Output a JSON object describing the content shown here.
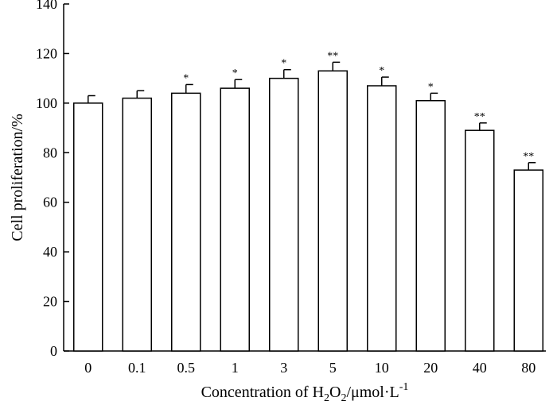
{
  "chart_data": {
    "type": "bar",
    "title": "",
    "xlabel": {
      "main": "Concentration of H",
      "sub1": "2",
      "mid": "O",
      "sub2": "2",
      "unit": "/μmol·L",
      "sup": "-1"
    },
    "ylabel": "Cell proliferation/%",
    "ylim": [
      0,
      140
    ],
    "yticks": [
      "0",
      "20",
      "40",
      "60",
      "80",
      "100",
      "120",
      "140"
    ],
    "grid": false,
    "categories": [
      "0",
      "0.1",
      "0.5",
      "1",
      "3",
      "5",
      "10",
      "20",
      "40",
      "80"
    ],
    "values": [
      100,
      102,
      104,
      106,
      110,
      113,
      107,
      101,
      89,
      73
    ],
    "errors": [
      3,
      3,
      3.5,
      3.5,
      3.5,
      3.5,
      3.5,
      3,
      3,
      3
    ],
    "significance": [
      "",
      "",
      "*",
      "*",
      "*",
      "**",
      "*",
      "*",
      "**",
      "**"
    ]
  }
}
